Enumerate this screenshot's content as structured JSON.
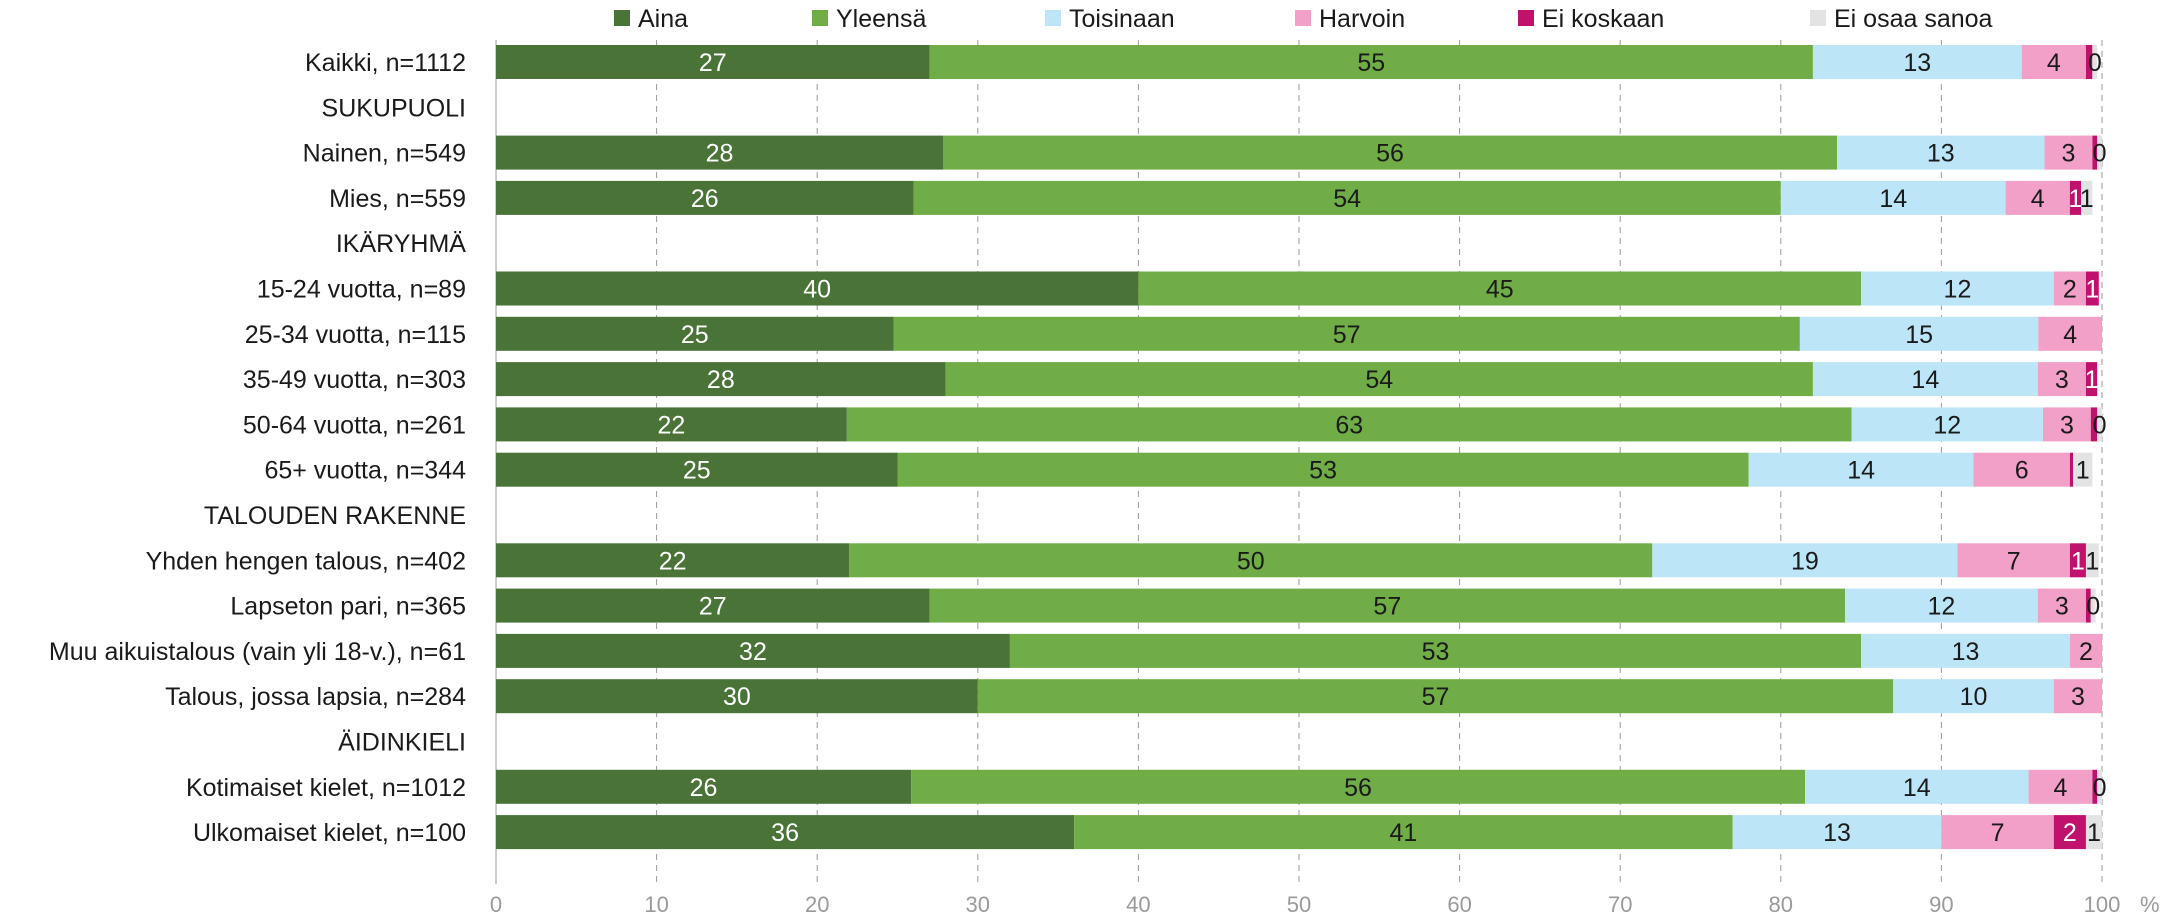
{
  "chart_data": {
    "type": "bar",
    "orientation": "horizontal",
    "stacked": true,
    "title": "",
    "xlabel": "",
    "ylabel": "",
    "unit": "%",
    "xlim": [
      0,
      100
    ],
    "x_ticks": [
      "0",
      "10",
      "20",
      "30",
      "40",
      "50",
      "60",
      "70",
      "80",
      "90",
      "100"
    ],
    "grid": true,
    "legend_position": "top",
    "categories": [
      "Kaikki, n=1112",
      "SUKUPUOLI",
      "Nainen, n=549",
      "Mies, n=559",
      "IKÄRYHMÄ",
      "15-24 vuotta, n=89",
      "25-34 vuotta, n=115",
      "35-49 vuotta, n=303",
      "50-64 vuotta, n=261",
      "65+ vuotta, n=344",
      "TALOUDEN RAKENNE",
      "Yhden hengen talous, n=402",
      "Lapseton pari, n=365",
      "Muu aikuistalous (vain yli 18-v.), n=61",
      "Talous, jossa lapsia, n=284",
      "ÄIDINKIELI",
      "Kotimaiset kielet, n=1012",
      "Ulkomaiset kielet, n=100"
    ],
    "series": [
      {
        "name": "Aina",
        "color": "#4a7338",
        "label_color": "#ffffff",
        "values": [
          27,
          null,
          28,
          26,
          null,
          40,
          25,
          28,
          22,
          25,
          null,
          22,
          27,
          32,
          30,
          null,
          26,
          36
        ],
        "labels": [
          "27",
          "",
          "28",
          "26",
          "",
          "40",
          "25",
          "28",
          "22",
          "25",
          "",
          "22",
          "27",
          "32",
          "30",
          "",
          "26",
          "36"
        ]
      },
      {
        "name": "Yleensä",
        "color": "#70ad47",
        "label_color": "#1a1a1a",
        "values": [
          55,
          null,
          56,
          54,
          null,
          45,
          57,
          54,
          63,
          53,
          null,
          50,
          57,
          53,
          57,
          null,
          56,
          41
        ],
        "labels": [
          "55",
          "",
          "56",
          "54",
          "",
          "45",
          "57",
          "54",
          "63",
          "53",
          "",
          "50",
          "57",
          "53",
          "57",
          "",
          "56",
          "41"
        ]
      },
      {
        "name": "Toisinaan",
        "color": "#bde5f8",
        "label_color": "#1a1a1a",
        "values": [
          13,
          null,
          13,
          14,
          null,
          12,
          15,
          14,
          12,
          14,
          null,
          19,
          12,
          13,
          10,
          null,
          14,
          13
        ],
        "labels": [
          "13",
          "",
          "13",
          "14",
          "",
          "12",
          "15",
          "14",
          "12",
          "14",
          "",
          "19",
          "12",
          "13",
          "10",
          "",
          "14",
          "13"
        ]
      },
      {
        "name": "Harvoin",
        "color": "#f2a0c8",
        "label_color": "#1a1a1a",
        "values": [
          4,
          null,
          3,
          4,
          null,
          2,
          4,
          3,
          3,
          6,
          null,
          7,
          3,
          2,
          3,
          null,
          4,
          7
        ],
        "labels": [
          "4",
          "",
          "3",
          "4",
          "",
          "2",
          "4",
          "3",
          "3",
          "6",
          "",
          "7",
          "3",
          "2",
          "3",
          "",
          "4",
          "7"
        ]
      },
      {
        "name": "Ei koskaan",
        "color": "#c0126c",
        "label_color": "#ffffff",
        "values": [
          0.4,
          null,
          0.3,
          0.7,
          null,
          0.8,
          0,
          0.7,
          0.4,
          0.2,
          null,
          1,
          0.3,
          0,
          0,
          null,
          0.3,
          2
        ],
        "labels": [
          "",
          "",
          "",
          "1",
          "",
          "1",
          "",
          "1",
          "",
          "",
          "",
          "1",
          "",
          "",
          "",
          "",
          "",
          "2"
        ]
      },
      {
        "name": "Ei osaa sanoa",
        "color": "#e3e3e3",
        "label_color": "#1a1a1a",
        "values": [
          0.3,
          null,
          0.3,
          0.7,
          null,
          0,
          0,
          0,
          0.3,
          1.2,
          null,
          0.8,
          0.3,
          0,
          0,
          null,
          0.3,
          1
        ],
        "labels": [
          "0",
          "",
          "0",
          "1",
          "",
          "",
          "",
          "",
          "0",
          "1",
          "",
          "1",
          "0",
          "",
          "",
          "",
          "0",
          "1"
        ]
      }
    ]
  }
}
